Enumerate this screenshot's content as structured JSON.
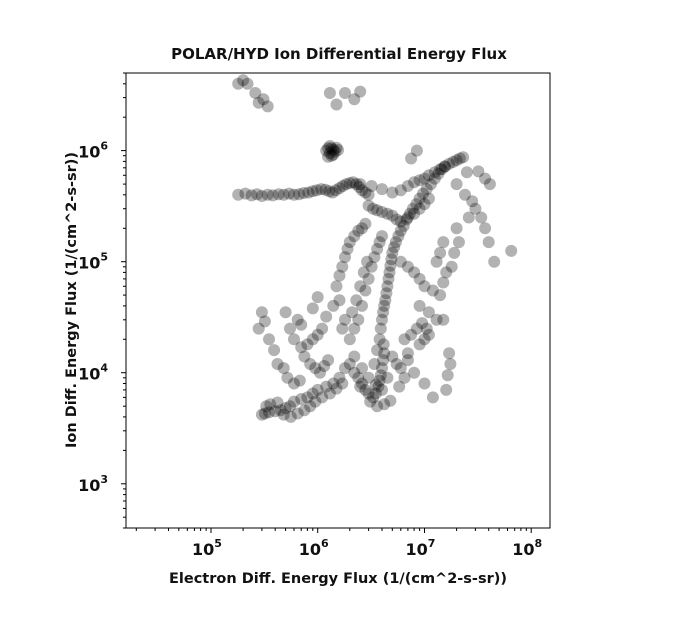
{
  "chart_data": {
    "type": "scatter",
    "title": "POLAR/HYD  Ion Differential Energy Flux",
    "xlabel": "Electron Diff. Energy Flux (1/(cm^2-s-sr))",
    "ylabel": "Ion Diff. Energy Flux (1/(cm^2-s-sr))",
    "x_scale": "log",
    "y_scale": "log",
    "xlim": [
      16000,
      150000000
    ],
    "ylim": [
      400,
      5000000
    ],
    "x_ticks": [
      {
        "base": "10",
        "exp": "5",
        "value": 100000
      },
      {
        "base": "10",
        "exp": "6",
        "value": 1000000
      },
      {
        "base": "10",
        "exp": "7",
        "value": 10000000
      },
      {
        "base": "10",
        "exp": "8",
        "value": 100000000
      }
    ],
    "y_ticks": [
      {
        "base": "10",
        "exp": "3",
        "value": 1000
      },
      {
        "base": "10",
        "exp": "4",
        "value": 10000
      },
      {
        "base": "10",
        "exp": "5",
        "value": 100000
      },
      {
        "base": "10",
        "exp": "6",
        "value": 1000000
      }
    ],
    "grid": false,
    "legend": "none",
    "marker_color": "#000000",
    "marker_alpha": 0.3,
    "points": [
      [
        180000,
        400000
      ],
      [
        210000,
        410000
      ],
      [
        240000,
        395000
      ],
      [
        270000,
        405000
      ],
      [
        300000,
        390000
      ],
      [
        340000,
        400000
      ],
      [
        380000,
        395000
      ],
      [
        430000,
        405000
      ],
      [
        480000,
        400000
      ],
      [
        540000,
        410000
      ],
      [
        600000,
        400000
      ],
      [
        670000,
        405000
      ],
      [
        740000,
        415000
      ],
      [
        820000,
        420000
      ],
      [
        900000,
        430000
      ],
      [
        980000,
        440000
      ],
      [
        1080000,
        450000
      ],
      [
        1180000,
        445000
      ],
      [
        1280000,
        430000
      ],
      [
        1380000,
        420000
      ],
      [
        1480000,
        440000
      ],
      [
        1600000,
        460000
      ],
      [
        1720000,
        480000
      ],
      [
        1850000,
        500000
      ],
      [
        2000000,
        510000
      ],
      [
        2150000,
        520000
      ],
      [
        2300000,
        500000
      ],
      [
        2450000,
        470000
      ],
      [
        2600000,
        440000
      ],
      [
        2800000,
        420000
      ],
      [
        3000000,
        400000
      ],
      [
        2500000,
        500000
      ],
      [
        3200000,
        480000
      ],
      [
        4000000,
        450000
      ],
      [
        5000000,
        420000
      ],
      [
        6000000,
        440000
      ],
      [
        7000000,
        480000
      ],
      [
        8000000,
        520000
      ],
      [
        9000000,
        540000
      ],
      [
        10000000,
        560000
      ],
      [
        11000000,
        600000
      ],
      [
        12500000,
        640000
      ],
      [
        14000000,
        680000
      ],
      [
        15500000,
        720000
      ],
      [
        17000000,
        760000
      ],
      [
        18500000,
        790000
      ],
      [
        20000000,
        820000
      ],
      [
        21500000,
        850000
      ],
      [
        23000000,
        870000
      ],
      [
        3000000,
        320000
      ],
      [
        3300000,
        300000
      ],
      [
        3600000,
        290000
      ],
      [
        4000000,
        280000
      ],
      [
        4500000,
        270000
      ],
      [
        5000000,
        260000
      ],
      [
        5500000,
        240000
      ],
      [
        6000000,
        230000
      ],
      [
        7000000,
        250000
      ],
      [
        8000000,
        270000
      ],
      [
        9000000,
        300000
      ],
      [
        10000000,
        330000
      ],
      [
        11000000,
        370000
      ],
      [
        4200000,
        40000
      ],
      [
        4300000,
        45000
      ],
      [
        4400000,
        52000
      ],
      [
        4500000,
        60000
      ],
      [
        4600000,
        70000
      ],
      [
        4700000,
        80000
      ],
      [
        4800000,
        92000
      ],
      [
        4900000,
        105000
      ],
      [
        5000000,
        120000
      ],
      [
        5200000,
        135000
      ],
      [
        5400000,
        150000
      ],
      [
        5700000,
        170000
      ],
      [
        6000000,
        190000
      ],
      [
        6400000,
        210000
      ],
      [
        6800000,
        240000
      ],
      [
        7300000,
        270000
      ],
      [
        7800000,
        300000
      ],
      [
        8400000,
        330000
      ],
      [
        9000000,
        370000
      ],
      [
        9700000,
        410000
      ],
      [
        10500000,
        450000
      ],
      [
        11500000,
        500000
      ],
      [
        12500000,
        560000
      ],
      [
        13500000,
        620000
      ],
      [
        14500000,
        680000
      ],
      [
        15500000,
        720000
      ],
      [
        3800000,
        20000
      ],
      [
        3900000,
        25000
      ],
      [
        4000000,
        30000
      ],
      [
        4100000,
        35000
      ],
      [
        4150000,
        18000
      ],
      [
        4200000,
        15000
      ],
      [
        4100000,
        13000
      ],
      [
        4000000,
        11000
      ],
      [
        3900000,
        9500
      ],
      [
        3800000,
        8500
      ],
      [
        3700000,
        7500
      ],
      [
        3500000,
        6500
      ],
      [
        3300000,
        6000
      ],
      [
        3100000,
        5500
      ],
      [
        3600000,
        5000
      ],
      [
        4200000,
        5200
      ],
      [
        4800000,
        5600
      ],
      [
        3400000,
        12000
      ],
      [
        3600000,
        16000
      ],
      [
        2000000,
        20000
      ],
      [
        2200000,
        25000
      ],
      [
        2400000,
        30000
      ],
      [
        2600000,
        40000
      ],
      [
        2800000,
        55000
      ],
      [
        3000000,
        70000
      ],
      [
        3200000,
        90000
      ],
      [
        3400000,
        110000
      ],
      [
        3600000,
        130000
      ],
      [
        3800000,
        150000
      ],
      [
        4000000,
        170000
      ],
      [
        2100000,
        35000
      ],
      [
        2300000,
        45000
      ],
      [
        2500000,
        60000
      ],
      [
        2700000,
        80000
      ],
      [
        2900000,
        100000
      ],
      [
        1500000,
        60000
      ],
      [
        1600000,
        75000
      ],
      [
        1700000,
        90000
      ],
      [
        1800000,
        110000
      ],
      [
        1900000,
        130000
      ],
      [
        2000000,
        150000
      ],
      [
        2200000,
        170000
      ],
      [
        2400000,
        190000
      ],
      [
        2600000,
        200000
      ],
      [
        2800000,
        220000
      ],
      [
        1400000,
        40000
      ],
      [
        1600000,
        45000
      ],
      [
        1800000,
        30000
      ],
      [
        1700000,
        25000
      ],
      [
        1800000,
        11000
      ],
      [
        2000000,
        12000
      ],
      [
        2200000,
        10000
      ],
      [
        2400000,
        9000
      ],
      [
        2600000,
        8000
      ],
      [
        2800000,
        7000
      ],
      [
        1600000,
        9000
      ],
      [
        1400000,
        8000
      ],
      [
        1200000,
        7500
      ],
      [
        1000000,
        7000
      ],
      [
        900000,
        6500
      ],
      [
        800000,
        6000
      ],
      [
        700000,
        5800
      ],
      [
        600000,
        5500
      ],
      [
        550000,
        5000
      ],
      [
        500000,
        4800
      ],
      [
        450000,
        4600
      ],
      [
        400000,
        4500
      ],
      [
        350000,
        4400
      ],
      [
        320000,
        4300
      ],
      [
        300000,
        4200
      ],
      [
        330000,
        5000
      ],
      [
        360000,
        5200
      ],
      [
        420000,
        5400
      ],
      [
        480000,
        4200
      ],
      [
        560000,
        4000
      ],
      [
        650000,
        4300
      ],
      [
        750000,
        4600
      ],
      [
        850000,
        5000
      ],
      [
        950000,
        5500
      ],
      [
        1100000,
        6000
      ],
      [
        1300000,
        6500
      ],
      [
        1500000,
        7200
      ],
      [
        1700000,
        8000
      ],
      [
        2500000,
        7500
      ],
      [
        3000000,
        6500
      ],
      [
        1200000,
        1000000
      ],
      [
        1250000,
        1050000
      ],
      [
        1300000,
        1100000
      ],
      [
        1350000,
        1050000
      ],
      [
        1400000,
        1020000
      ],
      [
        1450000,
        980000
      ],
      [
        1500000,
        1060000
      ],
      [
        1550000,
        1010000
      ],
      [
        1300000,
        950000
      ],
      [
        1400000,
        920000
      ],
      [
        1350000,
        900000
      ],
      [
        1250000,
        880000
      ],
      [
        8500000,
        1000000
      ],
      [
        7500000,
        850000
      ],
      [
        500000,
        35000
      ],
      [
        550000,
        25000
      ],
      [
        600000,
        20000
      ],
      [
        700000,
        17000
      ],
      [
        800000,
        18000
      ],
      [
        900000,
        20000
      ],
      [
        1000000,
        22000
      ],
      [
        1100000,
        25000
      ],
      [
        750000,
        14000
      ],
      [
        850000,
        12000
      ],
      [
        950000,
        11000
      ],
      [
        1050000,
        10000
      ],
      [
        1150000,
        11500
      ],
      [
        1250000,
        13000
      ],
      [
        650000,
        30000
      ],
      [
        700000,
        27000
      ],
      [
        420000,
        12000
      ],
      [
        480000,
        11000
      ],
      [
        520000,
        9000
      ],
      [
        600000,
        8000
      ],
      [
        680000,
        8500
      ],
      [
        20000000,
        500000
      ],
      [
        24000000,
        400000
      ],
      [
        28000000,
        350000
      ],
      [
        30000000,
        300000
      ],
      [
        26000000,
        250000
      ],
      [
        34000000,
        250000
      ],
      [
        37000000,
        200000
      ],
      [
        40000000,
        150000
      ],
      [
        45000000,
        100000
      ],
      [
        65000000,
        125000
      ],
      [
        32000000,
        650000
      ],
      [
        37000000,
        560000
      ],
      [
        41000000,
        500000
      ],
      [
        25000000,
        640000
      ],
      [
        20000000,
        200000
      ],
      [
        21000000,
        150000
      ],
      [
        19000000,
        120000
      ],
      [
        18000000,
        90000
      ],
      [
        16000000,
        80000
      ],
      [
        15000000,
        65000
      ],
      [
        14000000,
        50000
      ],
      [
        15000000,
        30000
      ],
      [
        17000000,
        15000
      ],
      [
        17500000,
        12000
      ],
      [
        16500000,
        9500
      ],
      [
        16000000,
        7000
      ],
      [
        12000000,
        6000
      ],
      [
        10000000,
        8000
      ],
      [
        8000000,
        10000
      ],
      [
        7000000,
        15000
      ],
      [
        6500000,
        20000
      ],
      [
        7500000,
        22000
      ],
      [
        8500000,
        25000
      ],
      [
        9500000,
        28000
      ],
      [
        10500000,
        25000
      ],
      [
        11000000,
        22000
      ],
      [
        10000000,
        20000
      ],
      [
        9000000,
        18000
      ],
      [
        6000000,
        100000
      ],
      [
        7000000,
        90000
      ],
      [
        8000000,
        80000
      ],
      [
        9000000,
        70000
      ],
      [
        10000000,
        60000
      ],
      [
        12000000,
        55000
      ],
      [
        13000000,
        100000
      ],
      [
        14000000,
        120000
      ],
      [
        15000000,
        150000
      ],
      [
        9000000,
        40000
      ],
      [
        11000000,
        35000
      ],
      [
        13000000,
        30000
      ],
      [
        1500000,
        2600000
      ],
      [
        2200000,
        2900000
      ],
      [
        1800000,
        3300000
      ],
      [
        1300000,
        3300000
      ],
      [
        2500000,
        3400000
      ],
      [
        340000,
        2500000
      ],
      [
        310000,
        2900000
      ],
      [
        260000,
        3300000
      ],
      [
        280000,
        2700000
      ],
      [
        220000,
        4000000
      ],
      [
        180000,
        4000000
      ],
      [
        200000,
        4300000
      ],
      [
        300000,
        35000
      ],
      [
        320000,
        29000
      ],
      [
        350000,
        20000
      ],
      [
        280000,
        25000
      ],
      [
        390000,
        16000
      ],
      [
        900000,
        38000
      ],
      [
        1000000,
        48000
      ],
      [
        1200000,
        32000
      ],
      [
        5000000,
        14000
      ],
      [
        5500000,
        12000
      ],
      [
        6000000,
        11000
      ],
      [
        4500000,
        9000
      ],
      [
        4000000,
        7000
      ],
      [
        3500000,
        7800
      ],
      [
        3000000,
        9000
      ],
      [
        2600000,
        11000
      ],
      [
        2200000,
        14000
      ],
      [
        7000000,
        13000
      ],
      [
        6500000,
        9000
      ],
      [
        5800000,
        7500
      ]
    ]
  }
}
